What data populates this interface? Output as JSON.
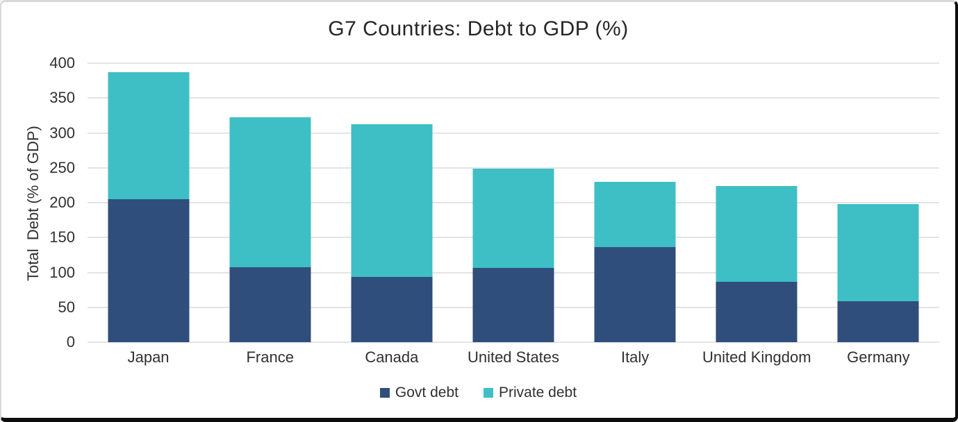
{
  "chart_data": {
    "type": "bar",
    "stacked": true,
    "title": "G7 Countries: Debt to GDP (%)",
    "ylabel": "Total  Debt (% of GDP)",
    "xlabel": "",
    "categories": [
      "Japan",
      "France",
      "Canada",
      "United States",
      "Italy",
      "United Kingdom",
      "Germany"
    ],
    "series": [
      {
        "name": "Govt debt",
        "color": "#2F4E7C",
        "values": [
          205,
          107,
          94,
          106,
          136,
          87,
          59
        ]
      },
      {
        "name": "Private debt",
        "color": "#3EBFC6",
        "values": [
          182,
          215,
          218,
          143,
          94,
          137,
          139
        ]
      }
    ],
    "totals": [
      387,
      322,
      312,
      249,
      230,
      224,
      198
    ],
    "ylim": [
      0,
      400
    ],
    "yticks": [
      0,
      50,
      100,
      150,
      200,
      250,
      300,
      350,
      400
    ],
    "grid": "horizontal",
    "grid_color": "#E4E4E4",
    "legend_position": "bottom",
    "text_color": "#303030",
    "background_color": "#FFFFFF"
  }
}
